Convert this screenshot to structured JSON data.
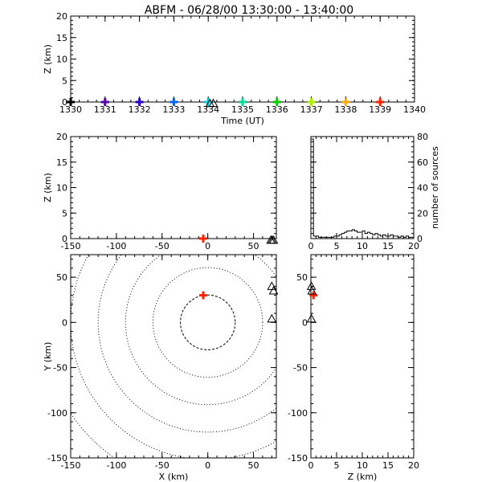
{
  "title": "ABFM - 06/28/00 13:30:00 - 13:40:00",
  "chart_data": [
    {
      "id": "time-height",
      "type": "scatter",
      "xlabel": "Time (UT)",
      "ylabel": "Z (km)",
      "xlim": [
        1330,
        1340
      ],
      "ylim": [
        0,
        20
      ],
      "xticks": [
        1330,
        1331,
        1332,
        1333,
        1334,
        1335,
        1336,
        1337,
        1338,
        1339,
        1340
      ],
      "yticks": [
        0,
        5,
        10,
        15,
        20
      ],
      "series": [
        {
          "values": [
            {
              "x": 1330.0,
              "y": 0.0,
              "color": "#000000"
            },
            {
              "x": 1331.0,
              "y": 0.0,
              "color": "#5500aa"
            },
            {
              "x": 1332.0,
              "y": 0.0,
              "color": "#2a00cc"
            },
            {
              "x": 1333.0,
              "y": 0.0,
              "color": "#0066ff"
            },
            {
              "x": 1334.0,
              "y": 0.0,
              "color": "#00ccdd"
            },
            {
              "x": 1335.0,
              "y": 0.0,
              "color": "#00dd99"
            },
            {
              "x": 1336.0,
              "y": 0.0,
              "color": "#00cc00"
            },
            {
              "x": 1337.0,
              "y": 0.0,
              "color": "#aaee00"
            },
            {
              "x": 1338.0,
              "y": 0.0,
              "color": "#ffaa00"
            },
            {
              "x": 1339.0,
              "y": 0.0,
              "color": "#ff2200"
            }
          ]
        },
        {
          "marker": "triangle",
          "values": [
            {
              "x": 1334.05,
              "y": -0.3
            },
            {
              "x": 1334.15,
              "y": -0.3
            }
          ]
        }
      ]
    },
    {
      "id": "x-height",
      "type": "scatter",
      "xlabel": "",
      "ylabel": "Z (km)",
      "xlim": [
        -150,
        75
      ],
      "ylim": [
        0,
        20
      ],
      "xticks": [
        -150,
        -100,
        -50,
        0,
        50
      ],
      "yticks": [
        0,
        5,
        10,
        15,
        20
      ],
      "series": [
        {
          "values": [
            {
              "x": -5,
              "y": 0.0,
              "color": "#ff2200"
            }
          ]
        },
        {
          "marker": "triangle",
          "values": [
            {
              "x": 69,
              "y": -0.3
            },
            {
              "x": 70.5,
              "y": -0.3
            },
            {
              "x": 72,
              "y": -0.3
            }
          ]
        }
      ]
    },
    {
      "id": "height-histogram",
      "type": "bar",
      "xlabel": "",
      "ylabel": "number of sources",
      "xlim": [
        0,
        20
      ],
      "ylim": [
        0,
        80
      ],
      "xticks": [
        0,
        5,
        10,
        15,
        20
      ],
      "yticks": [
        0,
        20,
        40,
        60,
        80
      ],
      "bin_edges": [
        0,
        0.5,
        1,
        1.5,
        2,
        2.5,
        3,
        3.5,
        4,
        4.5,
        5,
        5.5,
        6,
        6.5,
        7,
        7.5,
        8,
        8.5,
        9,
        9.5,
        10,
        10.5,
        11,
        11.5,
        12,
        12.5,
        13,
        13.5,
        14,
        14.5,
        15,
        15.5,
        16,
        16.5,
        17,
        17.5,
        18,
        18.5,
        19,
        19.5,
        20
      ],
      "values": [
        78,
        2,
        2,
        1,
        1,
        1,
        1,
        1,
        1,
        2,
        2,
        3,
        4,
        5,
        6,
        6,
        7,
        6,
        5,
        5,
        6,
        4,
        5,
        4,
        3,
        4,
        3,
        2,
        3,
        2,
        2,
        3,
        2,
        2,
        1,
        2,
        1,
        2,
        1,
        1
      ]
    },
    {
      "id": "plan-view",
      "type": "scatter",
      "xlabel": "X (km)",
      "ylabel": "Y (km)",
      "xlim": [
        -150,
        75
      ],
      "ylim": [
        -150,
        75
      ],
      "xticks": [
        -150,
        -100,
        -50,
        0,
        50
      ],
      "yticks": [
        -150,
        -100,
        -50,
        0,
        50
      ],
      "range_rings_km": [
        30,
        60,
        90,
        120,
        150,
        180
      ],
      "series": [
        {
          "values": [
            {
              "x": -5,
              "y": 30,
              "color": "#ff2200"
            }
          ]
        },
        {
          "marker": "triangle",
          "values": [
            {
              "x": 70,
              "y": 40
            },
            {
              "x": 72,
              "y": 35
            },
            {
              "x": 70,
              "y": 4
            }
          ]
        }
      ]
    },
    {
      "id": "height-y",
      "type": "scatter",
      "xlabel": "Z (km)",
      "ylabel": "",
      "xlim": [
        0,
        20
      ],
      "ylim": [
        -150,
        75
      ],
      "xticks": [
        0,
        5,
        10,
        15,
        20
      ],
      "yticks": [
        -150,
        -100,
        -50,
        0,
        50
      ],
      "series": [
        {
          "values": [
            {
              "x": 0.5,
              "y": 30,
              "color": "#ff2200"
            }
          ]
        },
        {
          "marker": "triangle",
          "values": [
            {
              "x": 0.1,
              "y": 40
            },
            {
              "x": 0.2,
              "y": 35
            },
            {
              "x": 0.1,
              "y": 4
            }
          ]
        }
      ]
    }
  ]
}
